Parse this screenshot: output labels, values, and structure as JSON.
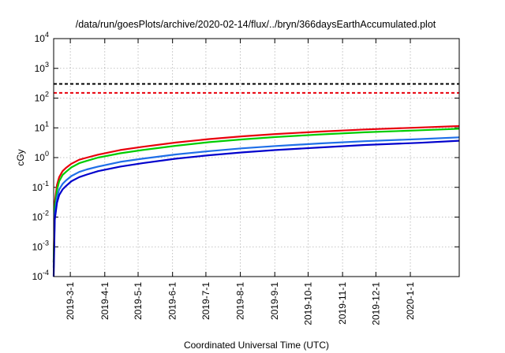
{
  "chart_data": {
    "type": "line",
    "title": "/data/run/goesPlots/archive/2020-02-14/flux/../bryn/366daysEarthAccumulated.plot",
    "xlabel": "Coordinated Universal Time (UTC)",
    "ylabel": "cGy",
    "yscale": "log",
    "ylim": [
      0.0001,
      10000
    ],
    "xlim": [
      "2019-02-14",
      "2020-02-14"
    ],
    "grid": true,
    "legend": "none",
    "yticks": [
      {
        "base": "10",
        "exp": "-4",
        "value": 0.0001
      },
      {
        "base": "10",
        "exp": "-3",
        "value": 0.001
      },
      {
        "base": "10",
        "exp": "-2",
        "value": 0.01
      },
      {
        "base": "10",
        "exp": "-1",
        "value": 0.1
      },
      {
        "base": "10",
        "exp": "0",
        "value": 1
      },
      {
        "base": "10",
        "exp": "1",
        "value": 10
      },
      {
        "base": "10",
        "exp": "2",
        "value": 100
      },
      {
        "base": "10",
        "exp": "3",
        "value": 1000
      },
      {
        "base": "10",
        "exp": "4",
        "value": 10000
      }
    ],
    "xticks": [
      {
        "label": "2019-3-1",
        "date": "2019-03-01"
      },
      {
        "label": "2019-4-1",
        "date": "2019-04-01"
      },
      {
        "label": "2019-5-1",
        "date": "2019-05-01"
      },
      {
        "label": "2019-6-1",
        "date": "2019-06-01"
      },
      {
        "label": "2019-7-1",
        "date": "2019-07-01"
      },
      {
        "label": "2019-8-1",
        "date": "2019-08-01"
      },
      {
        "label": "2019-9-1",
        "date": "2019-09-01"
      },
      {
        "label": "2019-10-1",
        "date": "2019-10-01"
      },
      {
        "label": "2019-11-1",
        "date": "2019-11-01"
      },
      {
        "label": "2019-12-1",
        "date": "2019-12-01"
      },
      {
        "label": "2020-1-1",
        "date": "2020-01-01"
      }
    ],
    "reference_lines": [
      {
        "y": 300,
        "color": "#000000",
        "style": "dashed"
      },
      {
        "y": 150,
        "color": "#e8000b",
        "style": "dashed"
      }
    ],
    "series": [
      {
        "color": "#e8000b",
        "x": [
          "2019-02-14",
          "2019-02-15",
          "2019-02-17",
          "2019-02-19",
          "2019-02-22",
          "2019-02-25",
          "2019-03-02",
          "2019-03-09",
          "2019-03-16",
          "2019-03-26",
          "2019-04-15",
          "2019-05-05",
          "2019-06-04",
          "2019-07-04",
          "2019-08-03",
          "2019-09-02",
          "2019-10-12",
          "2019-11-21",
          "2020-01-10",
          "2020-02-14"
        ],
        "y": [
          0.0003,
          0.03,
          0.12,
          0.22,
          0.35,
          0.45,
          0.62,
          0.85,
          1.0,
          1.25,
          1.8,
          2.3,
          3.2,
          4.2,
          5.2,
          6.2,
          7.5,
          8.8,
          10.3,
          11.5
        ]
      },
      {
        "color": "#00cc00",
        "x": [
          "2019-02-14",
          "2019-02-15",
          "2019-02-17",
          "2019-02-19",
          "2019-02-22",
          "2019-02-25",
          "2019-03-02",
          "2019-03-09",
          "2019-03-16",
          "2019-03-26",
          "2019-04-15",
          "2019-05-05",
          "2019-06-04",
          "2019-07-04",
          "2019-08-03",
          "2019-09-02",
          "2019-10-12",
          "2019-11-21",
          "2020-01-10",
          "2020-02-14"
        ],
        "y": [
          0.0003,
          0.02,
          0.08,
          0.16,
          0.26,
          0.33,
          0.47,
          0.65,
          0.78,
          1.0,
          1.4,
          1.8,
          2.5,
          3.3,
          4.1,
          4.9,
          6.0,
          7.1,
          8.3,
          9.3
        ]
      },
      {
        "color": "#1f6fe8",
        "x": [
          "2019-02-14",
          "2019-02-15",
          "2019-02-17",
          "2019-02-19",
          "2019-02-22",
          "2019-02-25",
          "2019-03-02",
          "2019-03-09",
          "2019-03-16",
          "2019-03-26",
          "2019-04-15",
          "2019-05-05",
          "2019-06-04",
          "2019-07-04",
          "2019-08-03",
          "2019-09-02",
          "2019-10-12",
          "2019-11-21",
          "2020-01-10",
          "2020-02-14"
        ],
        "y": [
          0.0002,
          0.012,
          0.045,
          0.085,
          0.13,
          0.17,
          0.24,
          0.33,
          0.4,
          0.5,
          0.72,
          0.92,
          1.28,
          1.65,
          2.05,
          2.45,
          3.0,
          3.55,
          4.2,
          4.8
        ]
      },
      {
        "color": "#0000cc",
        "x": [
          "2019-02-14",
          "2019-02-15",
          "2019-02-17",
          "2019-02-19",
          "2019-02-22",
          "2019-02-25",
          "2019-03-02",
          "2019-03-09",
          "2019-03-16",
          "2019-03-26",
          "2019-04-15",
          "2019-05-05",
          "2019-06-04",
          "2019-07-04",
          "2019-08-03",
          "2019-09-02",
          "2019-10-12",
          "2019-11-21",
          "2020-01-10",
          "2020-02-14"
        ],
        "y": [
          0.0001,
          0.008,
          0.03,
          0.055,
          0.085,
          0.11,
          0.16,
          0.22,
          0.27,
          0.35,
          0.5,
          0.65,
          0.92,
          1.2,
          1.5,
          1.8,
          2.2,
          2.65,
          3.15,
          3.7
        ]
      }
    ]
  }
}
